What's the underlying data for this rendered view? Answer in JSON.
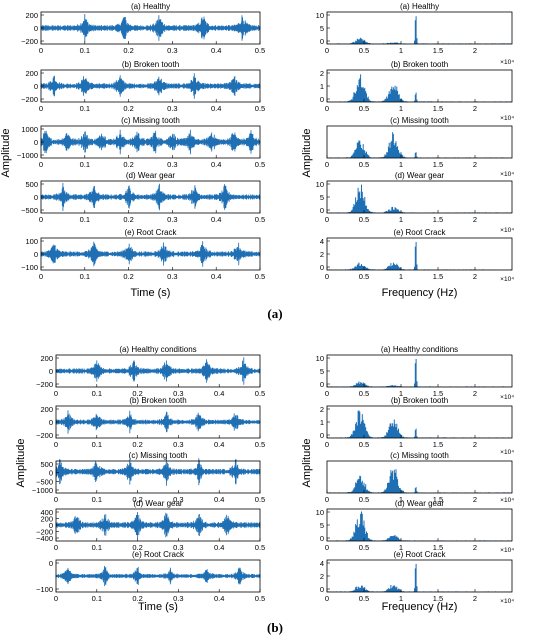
{
  "captions": {
    "a": "(a)",
    "b": "(b)"
  },
  "colors": {
    "signal": "#1f6fb5",
    "axes": "#000000",
    "background": "#ffffff"
  },
  "chart_data": [
    {
      "type": "line",
      "group": "a",
      "domain": "time",
      "xlabel": "Time (s)",
      "ylabel": "Amplitude",
      "xlim": [
        0,
        0.5
      ],
      "xticks": [
        "0",
        "0.1",
        "0.2",
        "0.3",
        "0.4",
        "0.5"
      ],
      "grid": false,
      "panels": [
        {
          "title": "(a) Healthy",
          "ylim": [
            -200,
            200
          ],
          "yticks": [
            "200",
            "0",
            "−200"
          ],
          "peak_amplitude": 200,
          "impacts_at": [
            0.1,
            0.19,
            0.27,
            0.37,
            0.46
          ]
        },
        {
          "title": "(b) Broken tooth",
          "ylim": [
            -200,
            200
          ],
          "yticks": [
            "200",
            "0",
            "−200"
          ],
          "peak_amplitude": 180,
          "impacts_at": [
            0.03,
            0.1,
            0.18,
            0.27,
            0.35,
            0.44
          ]
        },
        {
          "title": "(c) Missing tooth",
          "ylim": [
            -1000,
            1000
          ],
          "yticks": [
            "1000",
            "0",
            "−1000"
          ],
          "peak_amplitude": 900,
          "impacts_at": [
            0.01,
            0.06,
            0.1,
            0.14,
            0.18,
            0.22,
            0.26,
            0.3,
            0.34,
            0.39,
            0.44,
            0.48
          ]
        },
        {
          "title": "(d) Wear gear",
          "ylim": [
            -500,
            500
          ],
          "yticks": [
            "500",
            "0",
            "−500"
          ],
          "peak_amplitude": 450,
          "impacts_at": [
            0.05,
            0.12,
            0.2,
            0.27,
            0.35,
            0.42
          ]
        },
        {
          "title": "(e) Root Crack",
          "ylim": [
            -100,
            100
          ],
          "yticks": [
            "100",
            "0",
            "−100"
          ],
          "peak_amplitude": 90,
          "impacts_at": [
            0.03,
            0.12,
            0.2,
            0.28,
            0.37,
            0.45
          ]
        }
      ]
    },
    {
      "type": "bar",
      "group": "a",
      "domain": "frequency",
      "xlabel": "Frequency (Hz)",
      "ylabel": "Amplitude",
      "xlim": [
        0,
        2.5
      ],
      "xticks": [
        "0",
        "0.5",
        "1",
        "1.5",
        "2"
      ],
      "x_multiplier": "×10⁴",
      "grid": false,
      "panels": [
        {
          "title": "(a) Healthy",
          "ylim": [
            0,
            10
          ],
          "yticks": [
            "10",
            "5",
            "0"
          ],
          "peaks": [
            {
              "x": 0.45,
              "y": 2
            },
            {
              "x": 0.9,
              "y": 0.5
            },
            {
              "x": 1.2,
              "y": 10
            }
          ]
        },
        {
          "title": "(b) Broken tooth",
          "ylim": [
            0,
            2.5
          ],
          "yticks": [
            "2",
            "1",
            "0"
          ],
          "peaks": [
            {
              "x": 0.45,
              "y": 2.4
            },
            {
              "x": 0.9,
              "y": 1.6
            },
            {
              "x": 1.2,
              "y": 0.8
            }
          ]
        },
        {
          "title": "(c) Missing tooth",
          "ylim": [
            0,
            30
          ],
          "yticks": [],
          "peaks": [
            {
              "x": 0.45,
              "y": 18
            },
            {
              "x": 0.9,
              "y": 26
            },
            {
              "x": 1.2,
              "y": 6
            }
          ]
        },
        {
          "title": "(d) Wear gear",
          "ylim": [
            0,
            10
          ],
          "yticks": [
            "10",
            "5",
            "0"
          ],
          "peaks": [
            {
              "x": 0.45,
              "y": 10
            },
            {
              "x": 0.9,
              "y": 2
            }
          ]
        },
        {
          "title": "(e) Root Crack",
          "ylim": [
            0,
            4
          ],
          "yticks": [
            "4",
            "2",
            "0"
          ],
          "peaks": [
            {
              "x": 0.45,
              "y": 1
            },
            {
              "x": 0.9,
              "y": 1
            },
            {
              "x": 1.2,
              "y": 4
            }
          ]
        }
      ]
    },
    {
      "type": "line",
      "group": "b",
      "domain": "time",
      "xlabel": "Time (s)",
      "ylabel": "Amplitude",
      "xlim": [
        0,
        0.5
      ],
      "xticks": [
        "0",
        "0.1",
        "0.2",
        "0.3",
        "0.4",
        "0.5"
      ],
      "grid": false,
      "panels": [
        {
          "title": "(a) Healthy conditions",
          "ylim": [
            -200,
            200
          ],
          "yticks": [
            "200",
            "0",
            "−200"
          ],
          "peak_amplitude": 180,
          "impacts_at": [
            0.1,
            0.19,
            0.27,
            0.37,
            0.46
          ]
        },
        {
          "title": "(b) Broken tooth",
          "ylim": [
            -200,
            200
          ],
          "yticks": [
            "200",
            "0",
            "−200"
          ],
          "peak_amplitude": 160,
          "impacts_at": [
            0.03,
            0.1,
            0.18,
            0.27,
            0.35,
            0.44
          ]
        },
        {
          "title": "(c) Missing tooth",
          "ylim": [
            -1000,
            500
          ],
          "yticks": [
            "500",
            "0",
            "−500",
            "−1000"
          ],
          "peak_amplitude": 700,
          "impacts_at": [
            0.01,
            0.1,
            0.18,
            0.27,
            0.35,
            0.44
          ]
        },
        {
          "title": "(d) Wear gear",
          "ylim": [
            -400,
            400
          ],
          "yticks": [
            "400",
            "200",
            "0",
            "−200",
            "−400"
          ],
          "peak_amplitude": 380,
          "impacts_at": [
            0.05,
            0.12,
            0.2,
            0.27,
            0.35,
            0.42
          ]
        },
        {
          "title": "(e) Root Crack",
          "ylim": [
            -100,
            100
          ],
          "yticks": [
            "0",
            "−100"
          ],
          "peak_amplitude": 70,
          "impacts_at": [
            0.03,
            0.12,
            0.2,
            0.28,
            0.37,
            0.45
          ]
        }
      ]
    },
    {
      "type": "bar",
      "group": "b",
      "domain": "frequency",
      "xlabel": "Frequency (Hz)",
      "ylabel": "Amplitude",
      "xlim": [
        0,
        2.5
      ],
      "xticks": [
        "0",
        "0.5",
        "1",
        "1.5",
        "2"
      ],
      "x_multiplier": "×10⁴",
      "grid": false,
      "panels": [
        {
          "title": "(a) Healthy conditions",
          "ylim": [
            0,
            10
          ],
          "yticks": [
            "10",
            "5",
            "0"
          ],
          "peaks": [
            {
              "x": 0.45,
              "y": 2
            },
            {
              "x": 0.9,
              "y": 0.5
            },
            {
              "x": 1.2,
              "y": 10
            }
          ]
        },
        {
          "title": "(b) Broken tooth",
          "ylim": [
            0,
            2.5
          ],
          "yticks": [
            "2",
            "1",
            "0"
          ],
          "peaks": [
            {
              "x": 0.45,
              "y": 2.4
            },
            {
              "x": 0.9,
              "y": 1.6
            },
            {
              "x": 1.2,
              "y": 0.8
            }
          ]
        },
        {
          "title": "(c) Missing tooth",
          "ylim": [
            0,
            30
          ],
          "yticks": [],
          "peaks": [
            {
              "x": 0.45,
              "y": 18
            },
            {
              "x": 0.9,
              "y": 26
            },
            {
              "x": 1.2,
              "y": 6
            }
          ]
        },
        {
          "title": "(d) Wear gear",
          "ylim": [
            0,
            10
          ],
          "yticks": [
            "10",
            "5",
            "0"
          ],
          "peaks": [
            {
              "x": 0.45,
              "y": 10
            },
            {
              "x": 0.9,
              "y": 2
            }
          ]
        },
        {
          "title": "(e) Root Crack",
          "ylim": [
            0,
            4
          ],
          "yticks": [
            "4",
            "2",
            "0"
          ],
          "peaks": [
            {
              "x": 0.45,
              "y": 1
            },
            {
              "x": 0.9,
              "y": 1
            },
            {
              "x": 1.2,
              "y": 4
            }
          ]
        }
      ]
    }
  ]
}
